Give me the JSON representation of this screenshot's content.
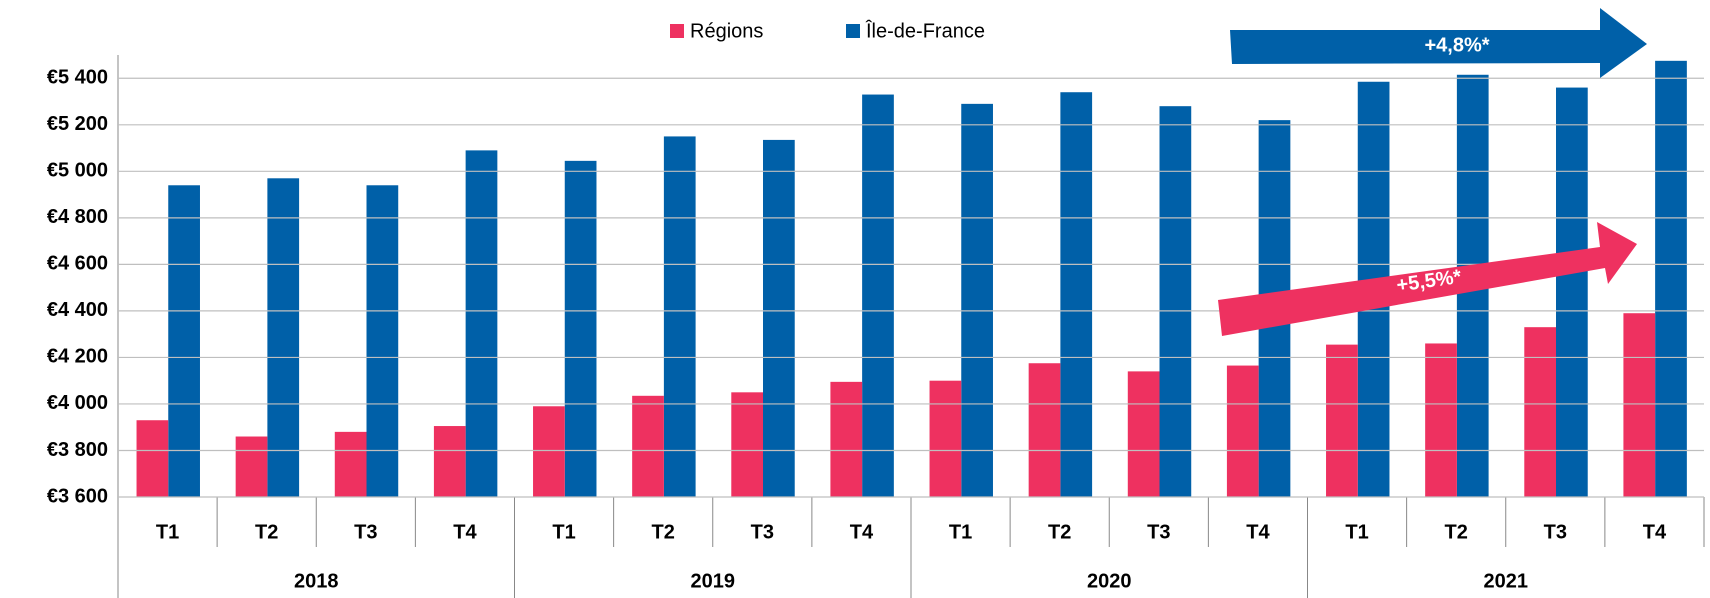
{
  "chart_data": {
    "type": "bar",
    "categories": [
      "T1",
      "T2",
      "T3",
      "T4",
      "T1",
      "T2",
      "T3",
      "T4",
      "T1",
      "T2",
      "T3",
      "T4",
      "T1",
      "T2",
      "T3",
      "T4"
    ],
    "groups": [
      "2018",
      "2019",
      "2020",
      "2021"
    ],
    "series": [
      {
        "name": "Régions",
        "color": "#ee3160",
        "values": [
          3930,
          3860,
          3880,
          3905,
          3990,
          4035,
          4050,
          4095,
          4100,
          4175,
          4140,
          4165,
          4255,
          4260,
          4330,
          4390
        ]
      },
      {
        "name": "Île-de-France",
        "color": "#0060a8",
        "values": [
          4940,
          4970,
          4940,
          5090,
          5045,
          5150,
          5135,
          5330,
          5290,
          5340,
          5280,
          5220,
          5385,
          5415,
          5360,
          5475
        ]
      }
    ],
    "ylim": [
      3600,
      5500
    ],
    "yticks": [
      {
        "value": 3600,
        "label": "€3 600"
      },
      {
        "value": 3800,
        "label": "€3 800"
      },
      {
        "value": 4000,
        "label": "€4 000"
      },
      {
        "value": 4200,
        "label": "€4 200"
      },
      {
        "value": 4400,
        "label": "€4 400"
      },
      {
        "value": 4600,
        "label": "€4 600"
      },
      {
        "value": 4800,
        "label": "€4 800"
      },
      {
        "value": 5000,
        "label": "€5 000"
      },
      {
        "value": 5200,
        "label": "€5 200"
      },
      {
        "value": 5400,
        "label": "€5 400"
      }
    ],
    "grid": true,
    "legend": "top",
    "annotations": [
      "+4,8%*",
      "+5,5%*"
    ]
  }
}
